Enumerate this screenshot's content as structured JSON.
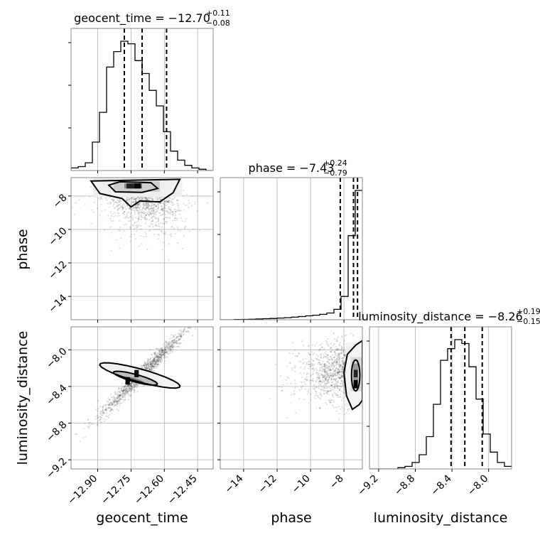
{
  "chart_data": {
    "type": "corner",
    "parameters": [
      "geocent_time",
      "phase",
      "luminosity_distance"
    ],
    "axis_labels": {
      "x": [
        "geocent_time",
        "phase",
        "luminosity_distance"
      ],
      "y": [
        "phase",
        "luminosity_distance"
      ]
    },
    "titles": [
      {
        "param": "geocent_time",
        "text": "geocent_time = −12.70",
        "sup": "+0.11",
        "sub": "−0.08"
      },
      {
        "param": "phase",
        "text": "phase = −7.43",
        "sup": "+0.24",
        "sub": "−0.79"
      },
      {
        "param": "luminosity_distance",
        "text": "luminosity_distance = −8.26",
        "sup": "+0.19",
        "sub": "−0.15"
      }
    ],
    "ranges": {
      "geocent_time": [
        -13.02,
        -12.38
      ],
      "phase": [
        -15.4,
        -6.9
      ],
      "luminosity_distance": [
        -9.3,
        -7.75
      ]
    },
    "ticks": {
      "geocent_time": [
        -12.9,
        -12.75,
        -12.6,
        -12.45
      ],
      "phase": [
        -14,
        -12,
        -10,
        -8
      ],
      "luminosity_distance": [
        -9.2,
        -8.8,
        -8.4,
        -8.0
      ]
    },
    "tick_labels": {
      "geocent_time": [
        "−12.90",
        "−12.75",
        "−12.60",
        "−12.45"
      ],
      "phase": [
        "−14",
        "−12",
        "−10",
        "−8"
      ],
      "luminosity_distance": [
        "−9.2",
        "−8.8",
        "−8.4",
        "−8.0"
      ]
    },
    "quantiles": {
      "geocent_time": [
        -12.78,
        -12.7,
        -12.59
      ],
      "phase": [
        -8.22,
        -7.43,
        -7.19
      ],
      "luminosity_distance": [
        -8.41,
        -8.26,
        -8.07
      ]
    },
    "histograms": {
      "geocent_time": {
        "edges": [
          -13.02,
          -12.988,
          -12.956,
          -12.924,
          -12.892,
          -12.86,
          -12.828,
          -12.796,
          -12.764,
          -12.732,
          -12.7,
          -12.668,
          -12.636,
          -12.604,
          -12.572,
          -12.54,
          -12.508,
          -12.476,
          -12.444,
          -12.412,
          -12.38
        ],
        "counts": [
          2,
          3,
          6,
          22,
          45,
          80,
          92,
          100,
          98,
          85,
          75,
          62,
          50,
          30,
          15,
          8,
          4,
          2,
          1,
          0
        ]
      },
      "phase": {
        "edges": [
          -15.4,
          -14.975,
          -14.55,
          -14.125,
          -13.7,
          -13.275,
          -12.85,
          -12.425,
          -12.0,
          -11.575,
          -11.15,
          -10.725,
          -10.3,
          -9.875,
          -9.45,
          -9.025,
          -8.6,
          -8.175,
          -7.75,
          -7.325,
          -6.9
        ],
        "counts": [
          0,
          0,
          0.2,
          0.3,
          0.4,
          0.6,
          0.8,
          1,
          1.3,
          1.6,
          2,
          2.5,
          3,
          3.5,
          4.2,
          5.2,
          8,
          18,
          65,
          100
        ]
      },
      "luminosity_distance": {
        "edges": [
          -9.3,
          -9.2225,
          -9.145,
          -9.0675,
          -8.99,
          -8.9125,
          -8.835,
          -8.7575,
          -8.68,
          -8.6025,
          -8.525,
          -8.4475,
          -8.37,
          -8.2925,
          -8.215,
          -8.1375,
          -8.06,
          -7.9825,
          -7.905,
          -7.8275,
          -7.75
        ],
        "counts": [
          0,
          0,
          0,
          0,
          1,
          2,
          5,
          11,
          25,
          50,
          84,
          93,
          100,
          97,
          79,
          54,
          27,
          13,
          5,
          2
        ]
      }
    }
  }
}
